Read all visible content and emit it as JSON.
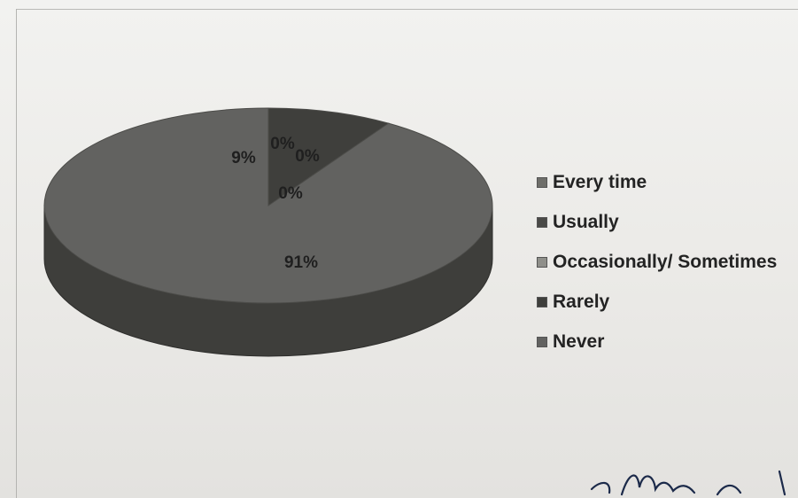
{
  "chart_data": {
    "type": "pie",
    "style": "3d",
    "title": "",
    "categories": [
      "Every time",
      "Usually",
      "Occasionally/ Sometimes",
      "Rarely",
      "Never"
    ],
    "values": [
      0,
      0,
      0,
      9,
      91
    ],
    "data_labels": [
      "0%",
      "0%",
      "0%",
      "9%",
      "91%"
    ],
    "legend_position": "right",
    "colors": [
      "#6e6e6a",
      "#4a4a47",
      "#8f8f8a",
      "#3f3f3c",
      "#626260"
    ]
  },
  "legend": {
    "items": [
      {
        "label": "Every time",
        "color": "#6e6e6a"
      },
      {
        "label": "Usually",
        "color": "#4a4a47"
      },
      {
        "label": "Occasionally/ Sometimes",
        "color": "#8f8f8a"
      },
      {
        "label": "Rarely",
        "color": "#3f3f3c"
      },
      {
        "label": "Never",
        "color": "#626260"
      }
    ]
  }
}
